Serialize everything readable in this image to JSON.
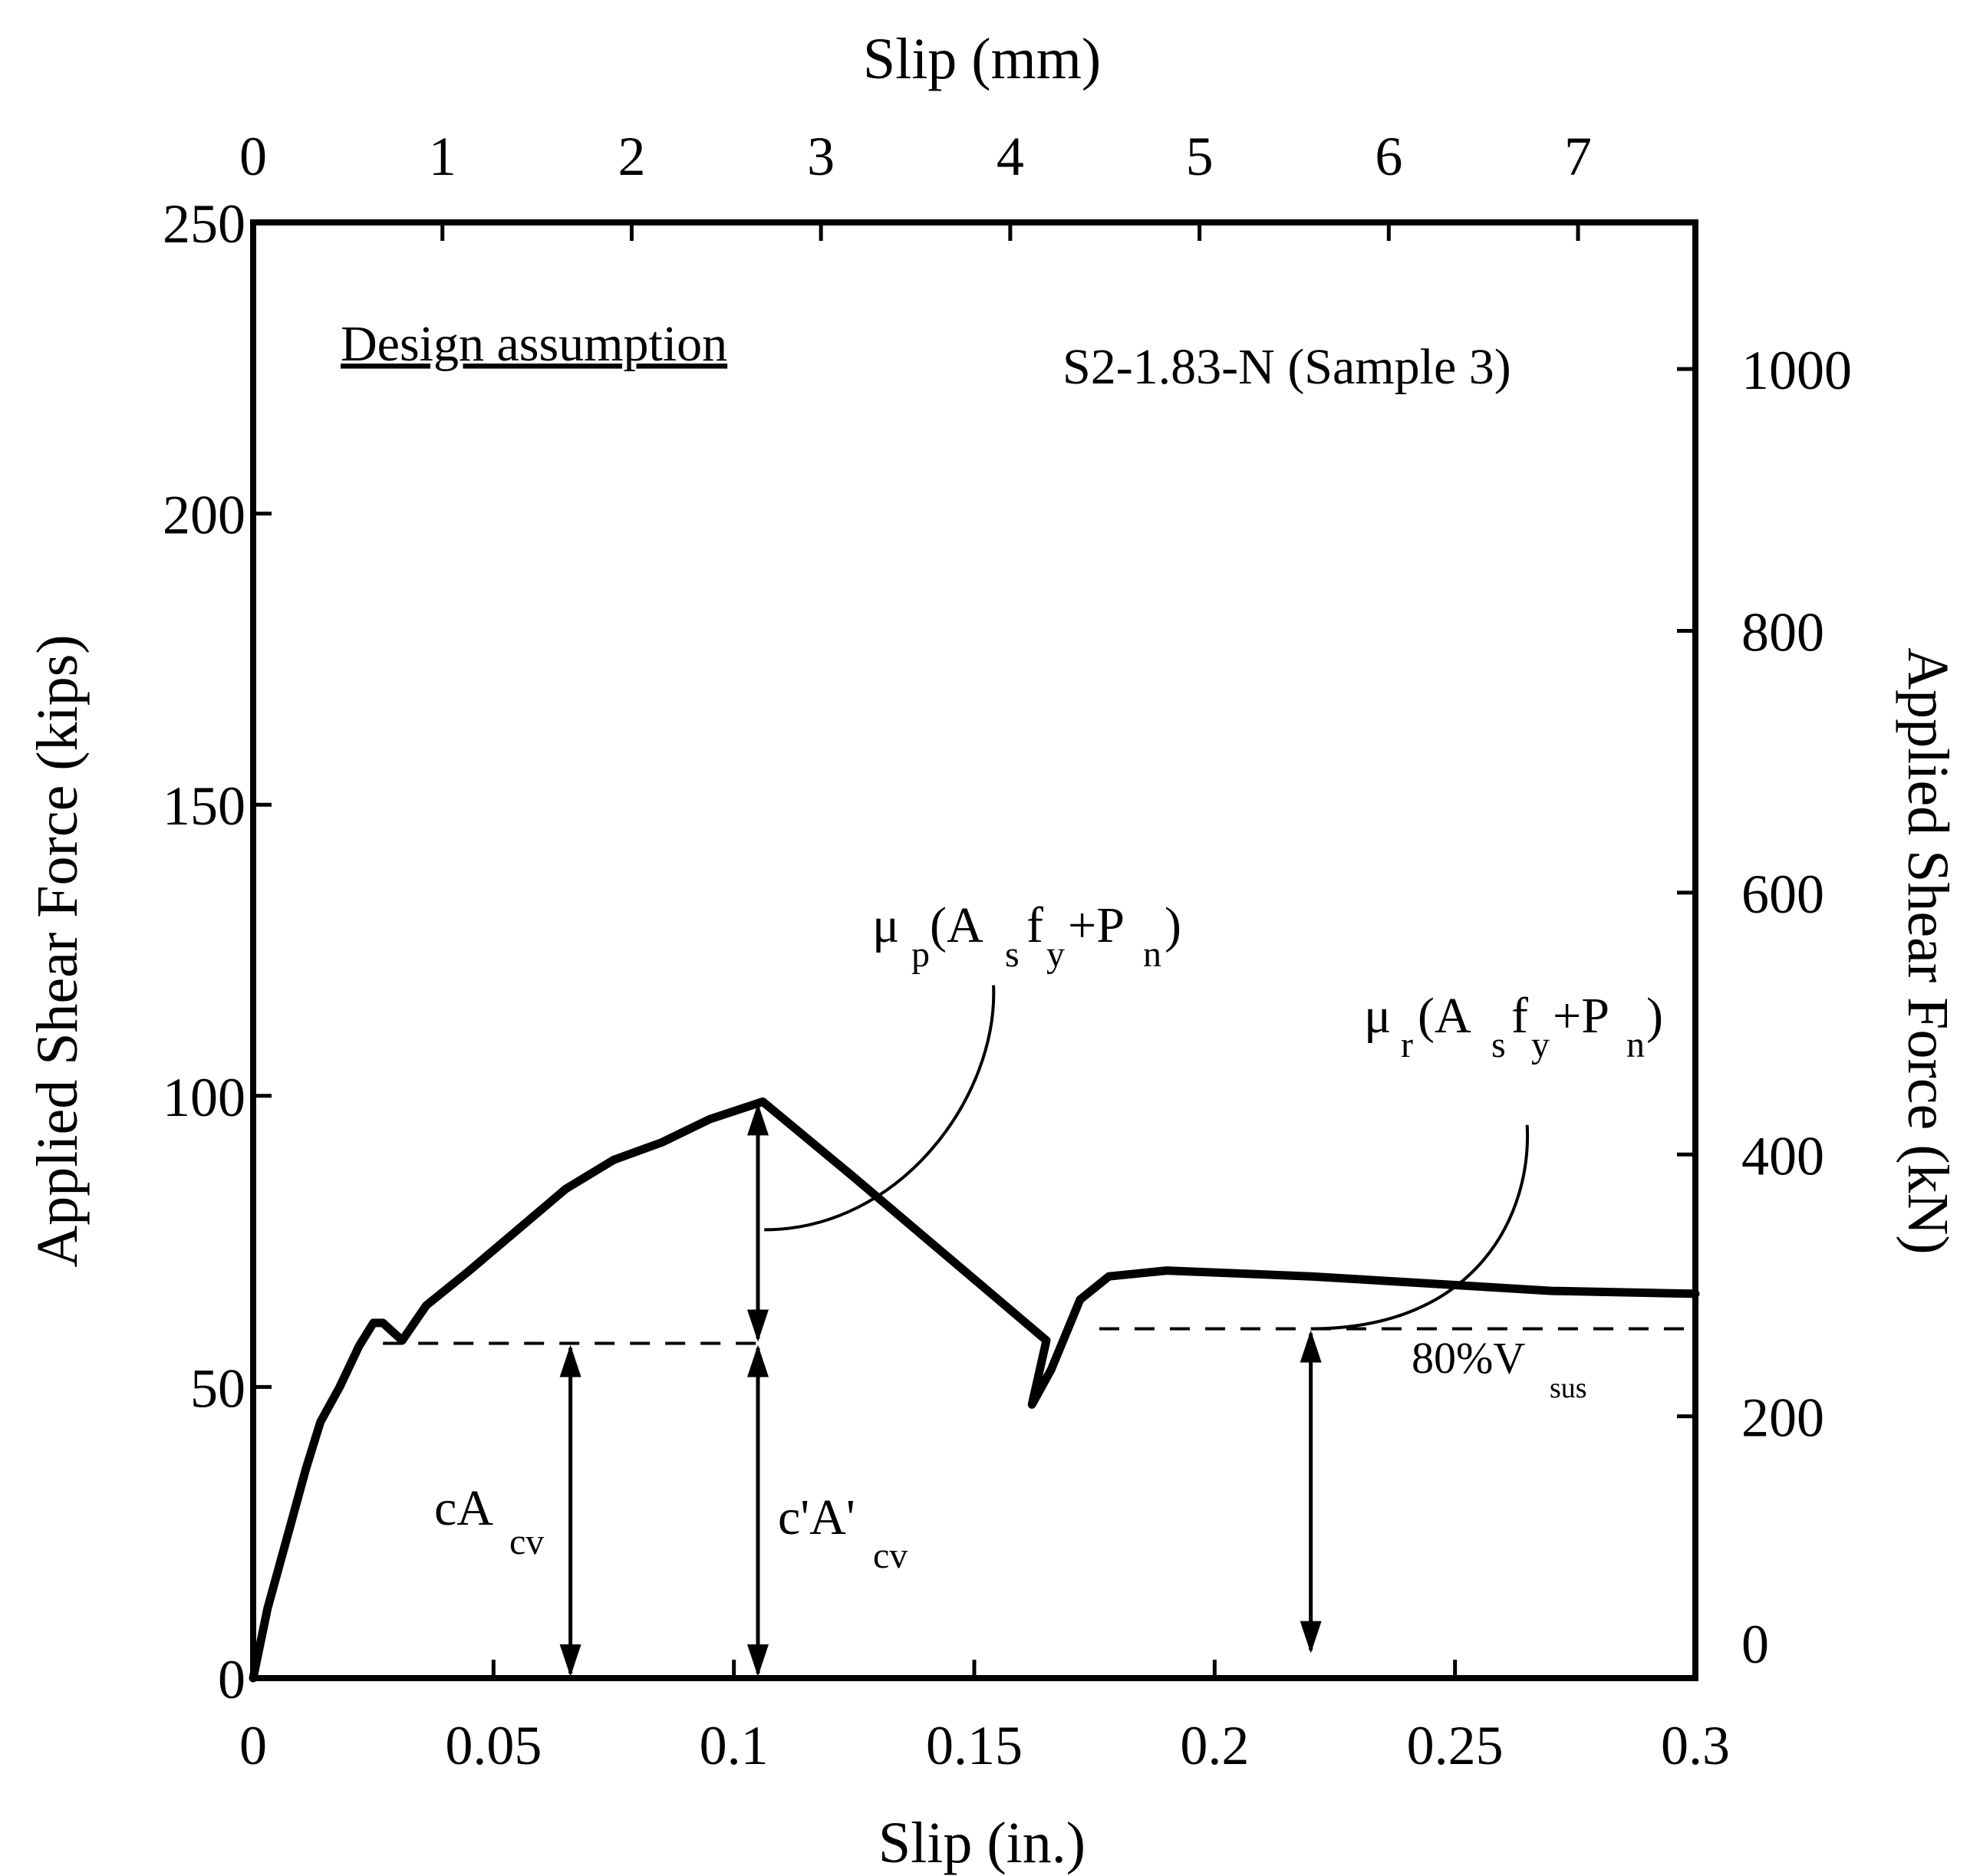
{
  "chart_data": {
    "type": "line",
    "title": "",
    "series_label": "S2-1.83-N (Sample 3)",
    "xlabel_bottom": "Slip (in.)",
    "xlabel_top": "Slip (mm)",
    "ylabel_left": "Applied Shear Force (kips)",
    "ylabel_right": "Applied Shear Force (kN)",
    "xlim": [
      0,
      0.3
    ],
    "ylim": [
      0,
      250
    ],
    "xlim_top_mm": [
      0,
      7.62
    ],
    "ylim_right_kN": [
      0,
      1112
    ],
    "xticks_bottom": [
      "0",
      "0.05",
      "0.1",
      "0.15",
      "0.2",
      "0.25",
      "0.3"
    ],
    "xticks_bottom_values": [
      0,
      0.05,
      0.1,
      0.15,
      0.2,
      0.25,
      0.3
    ],
    "xticks_top": [
      "0",
      "1",
      "2",
      "3",
      "4",
      "5",
      "6",
      "7"
    ],
    "xticks_top_values": [
      0,
      1,
      2,
      3,
      4,
      5,
      6,
      7
    ],
    "yticks_left": [
      "0",
      "50",
      "100",
      "150",
      "200",
      "250"
    ],
    "yticks_left_values": [
      0,
      50,
      100,
      150,
      200,
      250
    ],
    "yticks_right": [
      "0",
      "200",
      "400",
      "600",
      "800",
      "1000"
    ],
    "yticks_right_values": [
      0,
      200,
      400,
      600,
      800,
      1000
    ],
    "grid": false,
    "curve": [
      {
        "x": 0.0,
        "y": 0
      },
      {
        "x": 0.003,
        "y": 12
      },
      {
        "x": 0.007,
        "y": 24
      },
      {
        "x": 0.011,
        "y": 36
      },
      {
        "x": 0.014,
        "y": 44
      },
      {
        "x": 0.018,
        "y": 50
      },
      {
        "x": 0.022,
        "y": 57
      },
      {
        "x": 0.025,
        "y": 61
      },
      {
        "x": 0.027,
        "y": 61
      },
      {
        "x": 0.031,
        "y": 58
      },
      {
        "x": 0.036,
        "y": 64
      },
      {
        "x": 0.045,
        "y": 70
      },
      {
        "x": 0.055,
        "y": 77
      },
      {
        "x": 0.065,
        "y": 84
      },
      {
        "x": 0.075,
        "y": 89
      },
      {
        "x": 0.085,
        "y": 92
      },
      {
        "x": 0.095,
        "y": 96
      },
      {
        "x": 0.106,
        "y": 99
      },
      {
        "x": 0.125,
        "y": 86
      },
      {
        "x": 0.145,
        "y": 72
      },
      {
        "x": 0.165,
        "y": 58
      },
      {
        "x": 0.162,
        "y": 47
      },
      {
        "x": 0.166,
        "y": 53
      },
      {
        "x": 0.172,
        "y": 65
      },
      {
        "x": 0.178,
        "y": 69
      },
      {
        "x": 0.19,
        "y": 70
      },
      {
        "x": 0.22,
        "y": 69
      },
      {
        "x": 0.25,
        "y": 67.5
      },
      {
        "x": 0.27,
        "y": 66.5
      },
      {
        "x": 0.3,
        "y": 66
      }
    ],
    "dashed_levels": [
      {
        "x0": 0.027,
        "x1": 0.106,
        "y": 57.5
      },
      {
        "x0": 0.176,
        "x1": 0.3,
        "y": 60
      }
    ],
    "arrows": [
      {
        "x": 0.066,
        "y0": 0,
        "y1": 57.5
      },
      {
        "x": 0.105,
        "y0": 0,
        "y1": 57.5
      },
      {
        "x": 0.105,
        "y0": 57.5,
        "y1": 99
      },
      {
        "x": 0.22,
        "y0": 4,
        "y1": 60
      }
    ],
    "annotations": {
      "design_assumption": "Design assumption",
      "mu_p": "μ",
      "mu_p_sub": "p",
      "mu_r": "μ",
      "mu_r_sub": "r",
      "open_A": "(A",
      "sub_s": "s",
      "f": "f",
      "sub_y": "y",
      "plus_P": "+P",
      "sub_n": "n",
      "close": ")",
      "cA": "cA",
      "cA_sub": "cv",
      "cpA": "c'A'",
      "cpA_sub": "cv",
      "v80": "80%V",
      "v80_sub": "sus"
    }
  }
}
